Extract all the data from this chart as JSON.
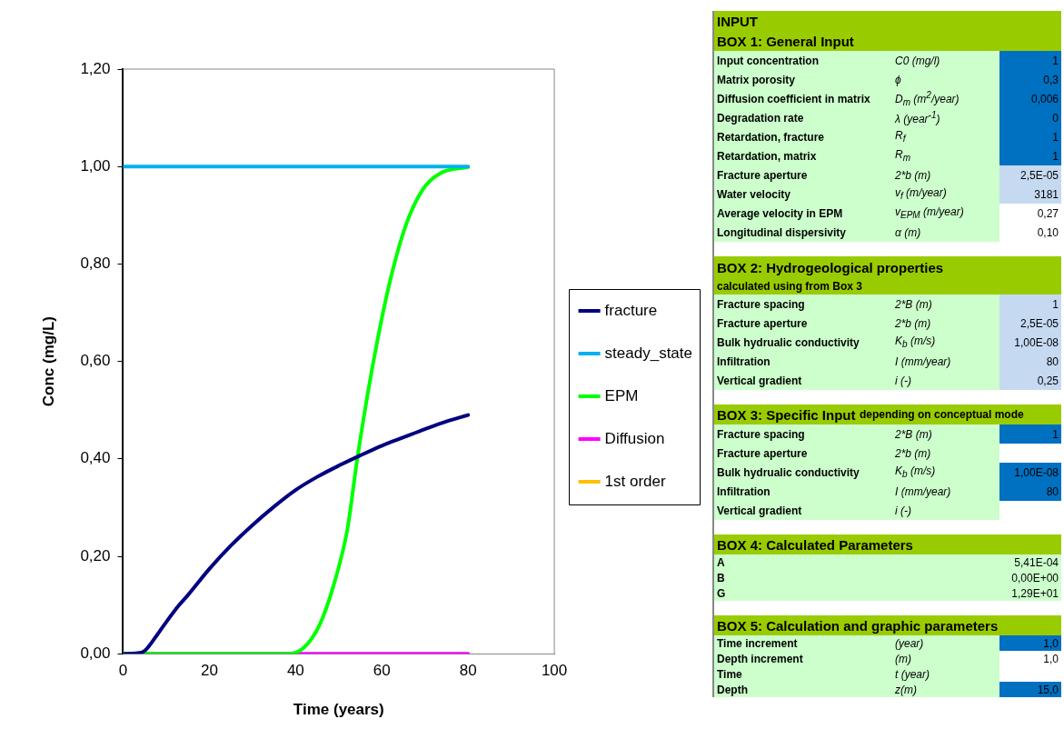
{
  "chart_data": [
    {
      "type": "line",
      "xlabel": "Time (years)",
      "ylabel": "Conc (mg/L)",
      "xlim": [
        0,
        100
      ],
      "xticks": [
        0,
        20,
        40,
        60,
        80,
        100
      ],
      "ylim": [
        0,
        1.2
      ],
      "yticks": [
        {
          "value": 0,
          "label": "0,00"
        },
        {
          "value": 0.2,
          "label": "0,20"
        },
        {
          "value": 0.4,
          "label": "0,40"
        },
        {
          "value": 0.6,
          "label": "0,60"
        },
        {
          "value": 0.8,
          "label": "0,80"
        },
        {
          "value": 1,
          "label": "1,00"
        },
        {
          "value": 1.2,
          "label": "1,20"
        }
      ],
      "grid": false,
      "legend": "right",
      "marker": "none",
      "line_style": "solid",
      "series": [
        {
          "name": "fracture",
          "color": "#000080",
          "x": [
            0,
            3,
            5,
            8,
            10,
            13,
            15,
            20,
            25,
            30,
            35,
            40,
            45,
            50,
            55,
            60,
            65,
            70,
            75,
            80
          ],
          "values": [
            0,
            0.001,
            0.006,
            0.04,
            0.065,
            0.1,
            0.12,
            0.174,
            0.222,
            0.264,
            0.302,
            0.336,
            0.363,
            0.386,
            0.407,
            0.427,
            0.444,
            0.461,
            0.477,
            0.49
          ]
        },
        {
          "name": "steady_state",
          "color": "#00b0f0",
          "x": [
            0,
            80
          ],
          "values": [
            1,
            1
          ]
        },
        {
          "name": "EPM",
          "color": "#00ff00",
          "x": [
            0,
            37.6,
            41.6,
            45.6,
            48.8,
            52,
            54.3,
            57.5,
            61.5,
            65.5,
            69.5,
            73.5,
            80
          ],
          "values": [
            0,
            0,
            0.01,
            0.06,
            0.14,
            0.255,
            0.4,
            0.573,
            0.75,
            0.878,
            0.953,
            0.986,
            0.999
          ]
        },
        {
          "name": "Diffusion",
          "color": "#ff00ff",
          "x": [
            0,
            80
          ],
          "values": [
            0,
            0
          ]
        },
        {
          "name": "1st order",
          "color": "#ffc000"
        }
      ]
    },
    {
      "type": "other",
      "title": "INPUT",
      "annotations": [
        "BOX 1: General Input",
        "Input concentration",
        "C0 (mg/l)",
        "1",
        "Matrix porosity",
        "ϕ",
        "0,3",
        "Diffusion coefficient in matrix",
        "D$_{m}$ (m$^{2}$/year)",
        "0,006",
        "Degradation rate",
        "λ (year$^{-1}$)",
        "0",
        "Retardation, fracture",
        "R$_{f}$",
        "1",
        "Retardation, matrix",
        "R$_{m}$",
        "1",
        "Fracture aperture",
        "2*b (m)",
        "2,5E-05",
        "Water velocity",
        "v$_{f}$ (m/year)",
        "3181",
        "Average velocity in EPM",
        "v$_{EPM}$ (m/year)",
        "0,27",
        "Longitudinal dispersivity",
        "α (m)",
        "0,10",
        "BOX 2: Hydrogeological properties",
        "calculated using from Box 3",
        "Fracture spacing",
        "2*B (m)",
        "1",
        "Fracture aperture",
        "2*b (m)",
        "2,5E-05",
        "Bulk hydrualic conductivity",
        "K$_{b}$ (m/s)",
        "1,00E-08",
        "Infiltration",
        "I (mm/year)",
        "80",
        "Vertical gradient",
        "i (-)",
        "0,25",
        "BOX 3: Specific Input",
        "depending on conceptual mode",
        "Fracture spacing",
        "2*B (m)",
        "1",
        "Fracture aperture",
        "2*b (m)",
        "Bulk hydrualic conductivity",
        "K$_{b}$ (m/s)",
        "1,00E-08",
        "Infiltration",
        "I (mm/year)",
        "80",
        "Vertical gradient",
        "i (-)",
        "BOX 4: Calculated Parameters",
        "A",
        "5,41E-04",
        "B",
        "0,00E+00",
        "G",
        "1,29E+01",
        "BOX 5: Calculation and graphic parameters",
        "Time increment",
        "(year)",
        "1,0",
        "Depth increment",
        "(m)",
        "1,0",
        "Time",
        "t (year)",
        "Depth",
        "z(m)",
        "15,0"
      ]
    }
  ]
}
